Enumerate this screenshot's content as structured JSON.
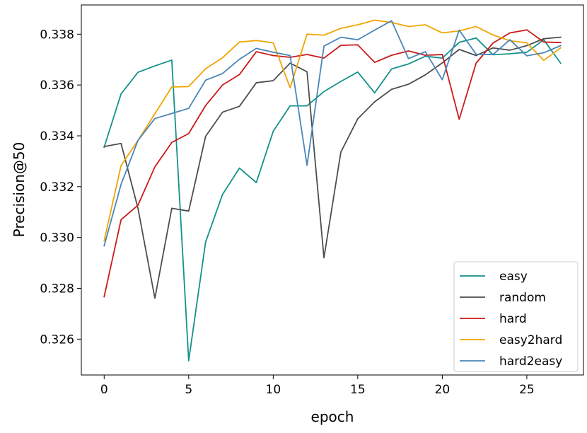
{
  "chart_data": {
    "type": "line",
    "title": "",
    "xlabel": "epoch",
    "ylabel": "Precision@50",
    "xlim": [
      -1.35,
      28.35
    ],
    "ylim": [
      0.32459,
      0.33915
    ],
    "xticks": [
      0,
      5,
      10,
      15,
      20,
      25
    ],
    "yticks": [
      0.326,
      0.328,
      0.33,
      0.332,
      0.334,
      0.336,
      0.338
    ],
    "grid": false,
    "legend_position": "lower-right",
    "x": [
      0,
      1,
      2,
      3,
      4,
      5,
      6,
      7,
      8,
      9,
      10,
      11,
      12,
      13,
      14,
      15,
      16,
      17,
      18,
      19,
      20,
      21,
      22,
      23,
      24,
      25,
      26,
      27
    ],
    "series": [
      {
        "name": "easy",
        "color": "#13918a",
        "values": [
          0.33355,
          0.33565,
          0.3365,
          0.33675,
          0.33698,
          0.32515,
          0.32982,
          0.33169,
          0.33273,
          0.33216,
          0.33418,
          0.33518,
          0.33518,
          0.33574,
          0.33614,
          0.33651,
          0.33569,
          0.33663,
          0.33683,
          0.33713,
          0.33706,
          0.33768,
          0.33785,
          0.33719,
          0.33723,
          0.33729,
          0.33778,
          0.33686
        ]
      },
      {
        "name": "random",
        "color": "#4d4d4d",
        "values": [
          0.33358,
          0.3337,
          0.33115,
          0.32761,
          0.33115,
          0.33104,
          0.33398,
          0.33493,
          0.33516,
          0.33609,
          0.33617,
          0.33686,
          0.33652,
          0.3292,
          0.33336,
          0.33467,
          0.33534,
          0.33583,
          0.33603,
          0.3364,
          0.33687,
          0.3374,
          0.33716,
          0.33746,
          0.33737,
          0.33755,
          0.33782,
          0.33788
        ]
      },
      {
        "name": "hard",
        "color": "#cc1a1a",
        "values": [
          0.32767,
          0.3307,
          0.33127,
          0.33278,
          0.33374,
          0.33409,
          0.33519,
          0.336,
          0.33641,
          0.33731,
          0.33716,
          0.33709,
          0.3372,
          0.33706,
          0.33756,
          0.33758,
          0.33689,
          0.33717,
          0.33734,
          0.33717,
          0.3372,
          0.33465,
          0.33686,
          0.33765,
          0.33805,
          0.33817,
          0.33769,
          0.33767
        ]
      },
      {
        "name": "easy2hard",
        "color": "#f0a500",
        "values": [
          0.32987,
          0.33283,
          0.33382,
          0.33487,
          0.33592,
          0.33594,
          0.33664,
          0.33707,
          0.33769,
          0.33775,
          0.33766,
          0.33589,
          0.338,
          0.33796,
          0.33823,
          0.33837,
          0.33855,
          0.33846,
          0.3383,
          0.33837,
          0.33805,
          0.33813,
          0.3383,
          0.33797,
          0.33774,
          0.33766,
          0.33697,
          0.33746
        ]
      },
      {
        "name": "hard2easy",
        "color": "#4a86b8",
        "values": [
          0.32967,
          0.33209,
          0.33382,
          0.33468,
          0.33488,
          0.33508,
          0.33619,
          0.33645,
          0.33701,
          0.33744,
          0.33729,
          0.33716,
          0.33284,
          0.33753,
          0.33788,
          0.33778,
          0.33816,
          0.33853,
          0.33704,
          0.33731,
          0.33621,
          0.33816,
          0.33721,
          0.3372,
          0.33778,
          0.33715,
          0.33727,
          0.33755
        ]
      }
    ]
  }
}
